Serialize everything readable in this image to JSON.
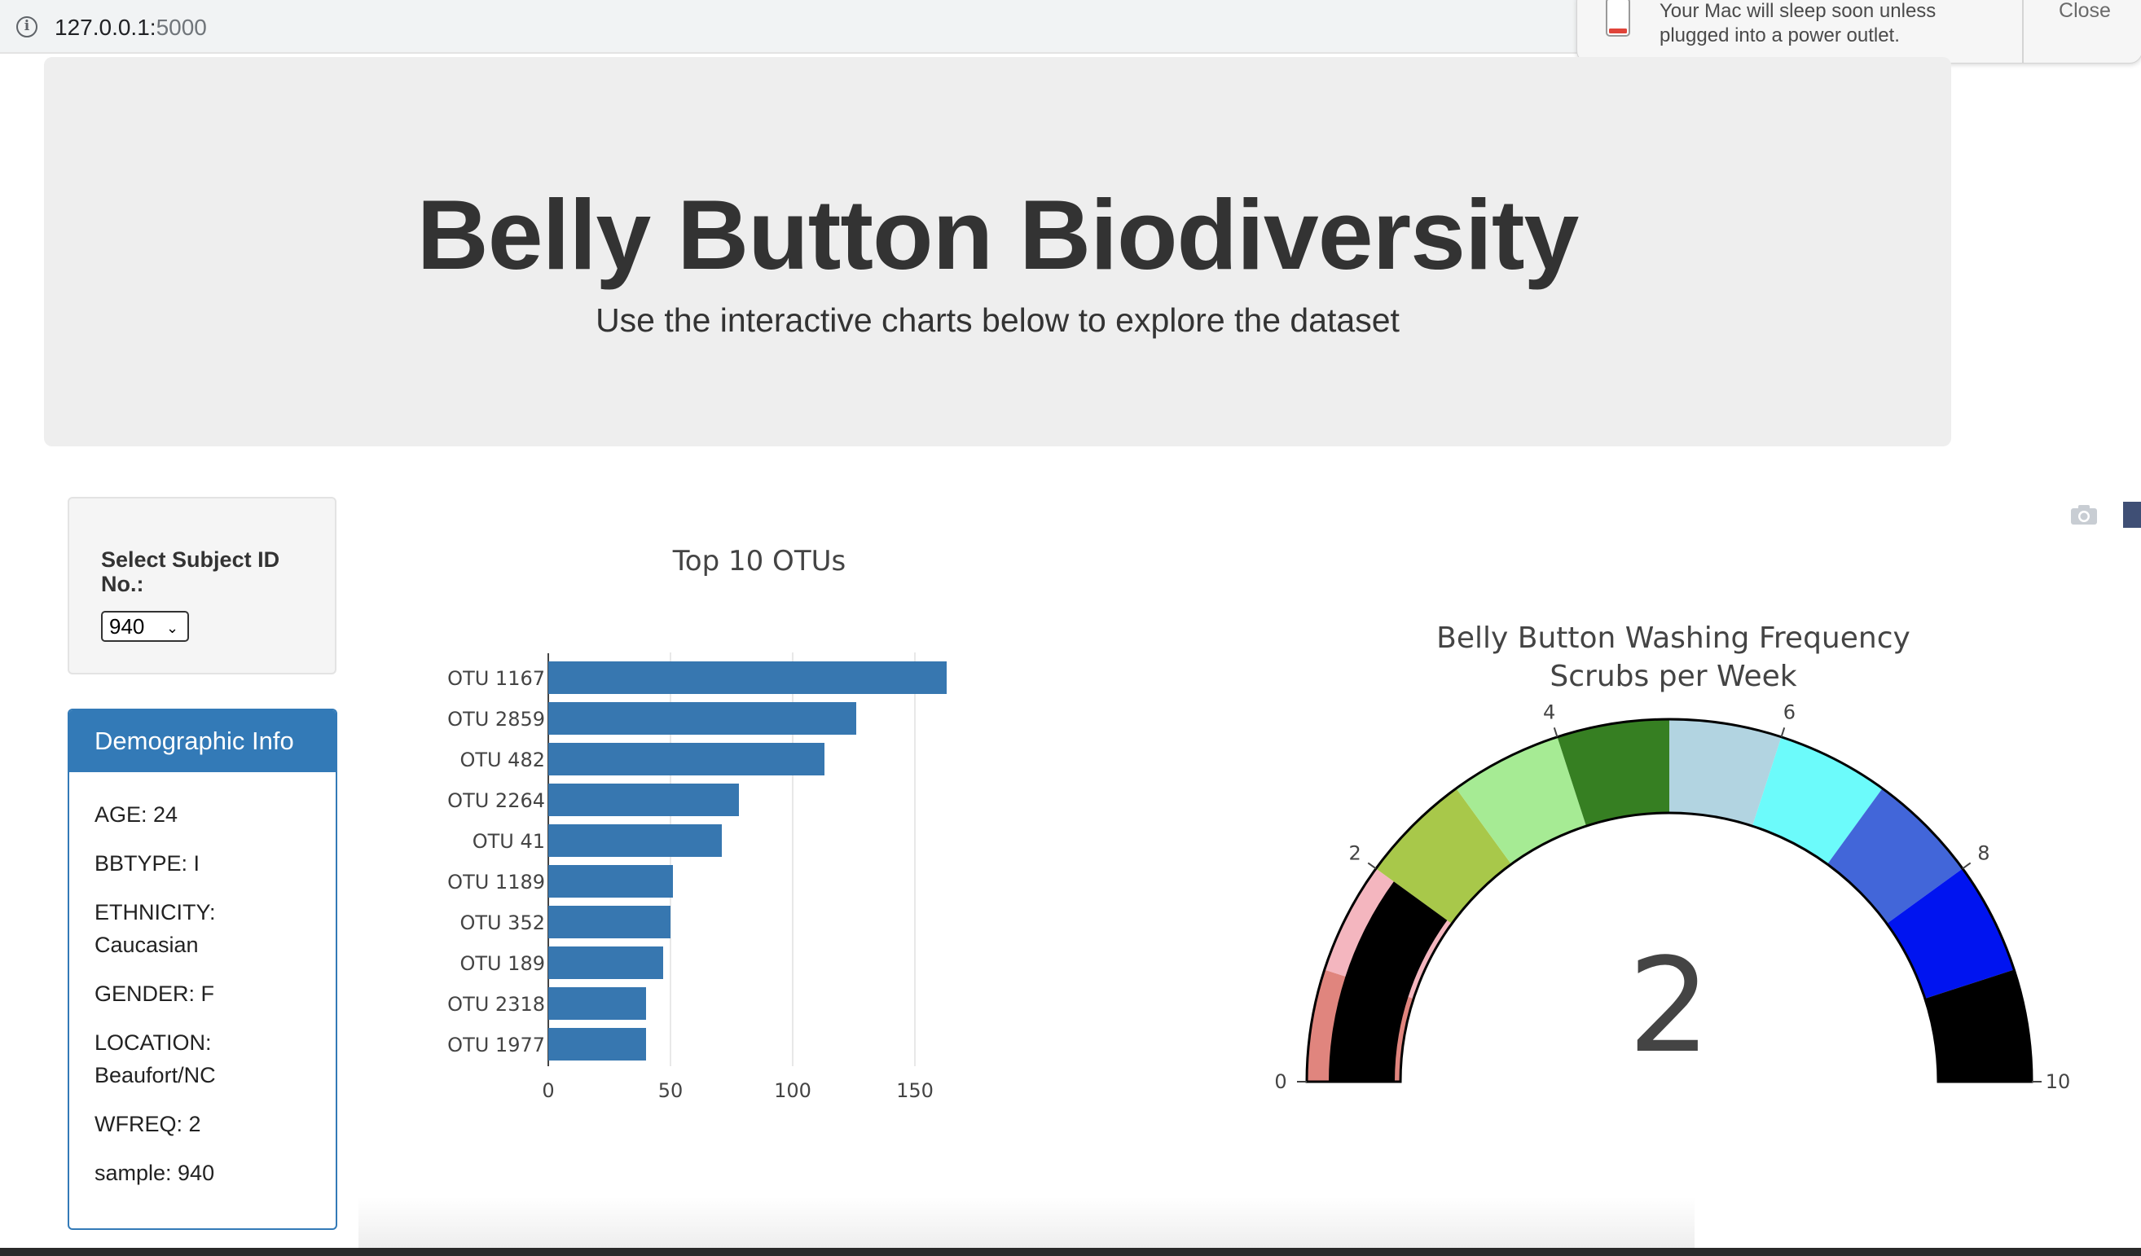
{
  "browser": {
    "url_host": "127.0.0.1:",
    "url_port": "5000"
  },
  "notification": {
    "message": "Your Mac will sleep soon unless plugged into a power outlet.",
    "close_label": "Close"
  },
  "header": {
    "title": "Belly Button Biodiversity",
    "subtitle": "Use the interactive charts below to explore the dataset"
  },
  "selector": {
    "label": "Select Subject ID No.:",
    "selected": "940"
  },
  "demographics": {
    "heading": "Demographic Info",
    "lines": [
      "AGE: 24",
      "BBTYPE: I",
      "ETHNICITY: Caucasian",
      "GENDER: F",
      "LOCATION: Beaufort/NC",
      "WFREQ: 2",
      "sample: 940"
    ]
  },
  "colors": {
    "accent": "#337ab7",
    "bar": "#3777b0"
  },
  "chart_data": [
    {
      "type": "bar",
      "orientation": "horizontal",
      "title": "Top 10 OTUs",
      "categories": [
        "OTU 1167",
        "OTU 2859",
        "OTU 482",
        "OTU 2264",
        "OTU 41",
        "OTU 1189",
        "OTU 352",
        "OTU 189",
        "OTU 2318",
        "OTU 1977"
      ],
      "values": [
        163,
        126,
        113,
        78,
        71,
        51,
        50,
        47,
        40,
        40
      ],
      "xlim": [
        0,
        165
      ],
      "xticks": [
        0,
        50,
        100,
        150
      ],
      "grid": true
    },
    {
      "type": "gauge",
      "title": "Belly Button Washing Frequency",
      "subtitle": "Scrubs per Week",
      "value": 2,
      "range": [
        0,
        10
      ],
      "ticks": [
        0,
        2,
        4,
        6,
        8,
        10
      ],
      "steps": [
        {
          "range": [
            0,
            1
          ],
          "color": "#e0857e"
        },
        {
          "range": [
            1,
            2
          ],
          "color": "#f4b6bf"
        },
        {
          "range": [
            2,
            3
          ],
          "color": "#a8c84a"
        },
        {
          "range": [
            3,
            4
          ],
          "color": "#a6eb94"
        },
        {
          "range": [
            4,
            5
          ],
          "color": "#367f22"
        },
        {
          "range": [
            5,
            6
          ],
          "color": "#b2d4e1"
        },
        {
          "range": [
            6,
            7
          ],
          "color": "#6cfbfb"
        },
        {
          "range": [
            7,
            8
          ],
          "color": "#4266d9"
        },
        {
          "range": [
            8,
            9
          ],
          "color": "#0014f0"
        },
        {
          "range": [
            9,
            10
          ],
          "color": "#000000"
        }
      ],
      "bar_color": "#000000"
    }
  ]
}
